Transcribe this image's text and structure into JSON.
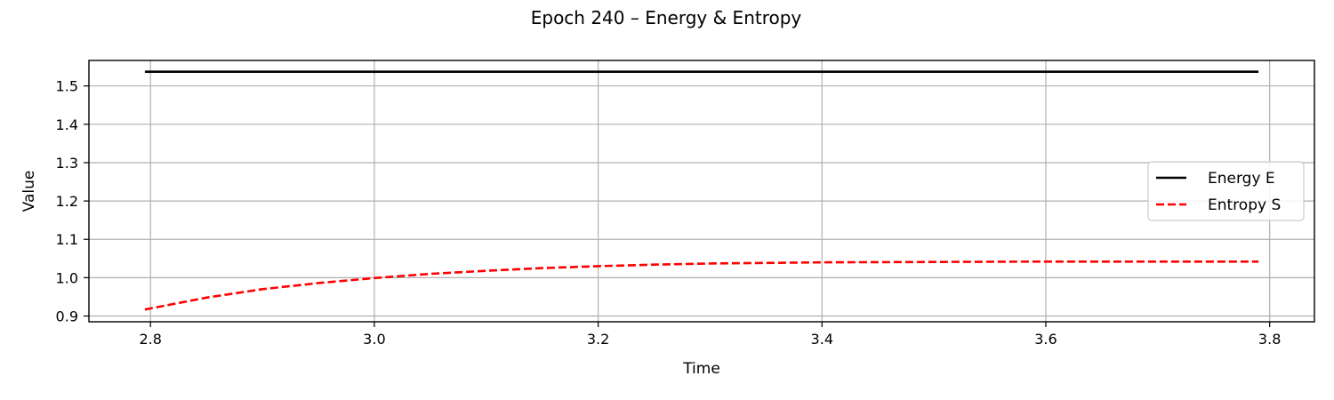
{
  "chart_data": {
    "type": "line",
    "title": "Epoch 240 – Energy & Entropy",
    "xlabel": "Time",
    "ylabel": "Value",
    "xlim": [
      2.745,
      3.84
    ],
    "ylim": [
      0.885,
      1.5665
    ],
    "xticks": [
      2.8,
      3.0,
      3.2,
      3.4,
      3.6,
      3.8
    ],
    "xtick_labels": [
      "2.8",
      "3.0",
      "3.2",
      "3.4",
      "3.6",
      "3.8"
    ],
    "yticks": [
      0.9,
      1.0,
      1.1,
      1.2,
      1.3,
      1.4,
      1.5
    ],
    "ytick_labels": [
      "0.9",
      "1.0",
      "1.1",
      "1.2",
      "1.3",
      "1.4",
      "1.5"
    ],
    "grid": true,
    "legend_position": "center-right",
    "series": [
      {
        "name": "Energy E",
        "color": "#000000",
        "style": "solid",
        "x": [
          2.795,
          2.9,
          3.0,
          3.1,
          3.2,
          3.3,
          3.4,
          3.5,
          3.6,
          3.7,
          3.79
        ],
        "y": [
          1.537,
          1.537,
          1.537,
          1.537,
          1.537,
          1.537,
          1.537,
          1.537,
          1.537,
          1.537,
          1.537
        ]
      },
      {
        "name": "Entropy S",
        "color": "#ff0000",
        "style": "dashed",
        "x": [
          2.795,
          2.85,
          2.9,
          2.95,
          3.0,
          3.05,
          3.1,
          3.15,
          3.2,
          3.25,
          3.3,
          3.4,
          3.5,
          3.6,
          3.7,
          3.79
        ],
        "y": [
          0.917,
          0.948,
          0.97,
          0.986,
          0.999,
          1.01,
          1.018,
          1.025,
          1.03,
          1.034,
          1.037,
          1.04,
          1.041,
          1.042,
          1.042,
          1.042
        ]
      }
    ]
  }
}
